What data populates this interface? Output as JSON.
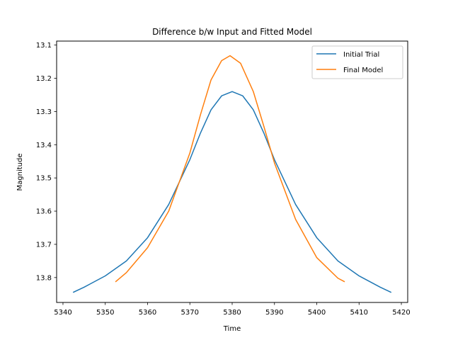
{
  "chart_data": {
    "type": "line",
    "title": "Difference b/w Input and Fitted Model",
    "xlabel": "Time",
    "ylabel": "Magnitude",
    "xlim": [
      5338.5,
      5421.5
    ],
    "ylim": [
      13.875,
      13.088
    ],
    "y_inverted": true,
    "xticks": [
      5340,
      5350,
      5360,
      5370,
      5380,
      5390,
      5400,
      5410,
      5420
    ],
    "yticks": [
      13.1,
      13.2,
      13.3,
      13.4,
      13.5,
      13.6,
      13.7,
      13.8
    ],
    "grid": false,
    "legend_position": "top-right",
    "series": [
      {
        "name": "Initial Trial",
        "color": "#1f77b4",
        "x": [
          5342.5,
          5345,
          5350,
          5355,
          5360,
          5365,
          5370,
          5372.5,
          5375,
          5377.5,
          5380,
          5382.5,
          5385,
          5387.5,
          5390,
          5395,
          5400,
          5405,
          5410,
          5415,
          5417.5
        ],
        "y": [
          13.844,
          13.829,
          13.795,
          13.75,
          13.68,
          13.58,
          13.445,
          13.365,
          13.295,
          13.253,
          13.24,
          13.253,
          13.295,
          13.365,
          13.445,
          13.58,
          13.68,
          13.75,
          13.795,
          13.829,
          13.844
        ]
      },
      {
        "name": "Final Model",
        "color": "#ff7f0e",
        "x": [
          5352.5,
          5355,
          5360,
          5365,
          5370,
          5372.5,
          5375,
          5377.5,
          5379.5,
          5382,
          5385,
          5387.5,
          5390,
          5395,
          5400,
          5405,
          5406.5
        ],
        "y": [
          13.812,
          13.785,
          13.71,
          13.6,
          13.425,
          13.31,
          13.205,
          13.147,
          13.132,
          13.155,
          13.24,
          13.345,
          13.455,
          13.625,
          13.74,
          13.802,
          13.812
        ]
      }
    ]
  }
}
